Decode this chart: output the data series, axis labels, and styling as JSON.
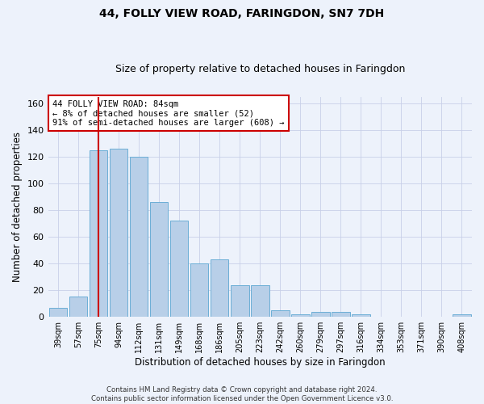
{
  "title": "44, FOLLY VIEW ROAD, FARINGDON, SN7 7DH",
  "subtitle": "Size of property relative to detached houses in Faringdon",
  "xlabel": "Distribution of detached houses by size in Faringdon",
  "ylabel": "Number of detached properties",
  "categories": [
    "39sqm",
    "57sqm",
    "75sqm",
    "94sqm",
    "112sqm",
    "131sqm",
    "149sqm",
    "168sqm",
    "186sqm",
    "205sqm",
    "223sqm",
    "242sqm",
    "260sqm",
    "279sqm",
    "297sqm",
    "316sqm",
    "334sqm",
    "353sqm",
    "371sqm",
    "390sqm",
    "408sqm"
  ],
  "values": [
    7,
    15,
    125,
    126,
    120,
    86,
    72,
    40,
    43,
    24,
    24,
    5,
    2,
    4,
    4,
    2,
    0,
    0,
    0,
    0,
    2
  ],
  "bar_color": "#b8cfe8",
  "bar_edge_color": "#6baed6",
  "grid_color": "#c8d0e8",
  "background_color": "#edf2fb",
  "vline_color": "#cc0000",
  "vline_index": 2,
  "annotation_text": "44 FOLLY VIEW ROAD: 84sqm\n← 8% of detached houses are smaller (52)\n91% of semi-detached houses are larger (608) →",
  "annotation_box_color": "#ffffff",
  "annotation_box_edge": "#cc0000",
  "footer_text": "Contains HM Land Registry data © Crown copyright and database right 2024.\nContains public sector information licensed under the Open Government Licence v3.0.",
  "ylim": [
    0,
    165
  ],
  "yticks": [
    0,
    20,
    40,
    60,
    80,
    100,
    120,
    140,
    160
  ],
  "title_fontsize": 10,
  "subtitle_fontsize": 9
}
